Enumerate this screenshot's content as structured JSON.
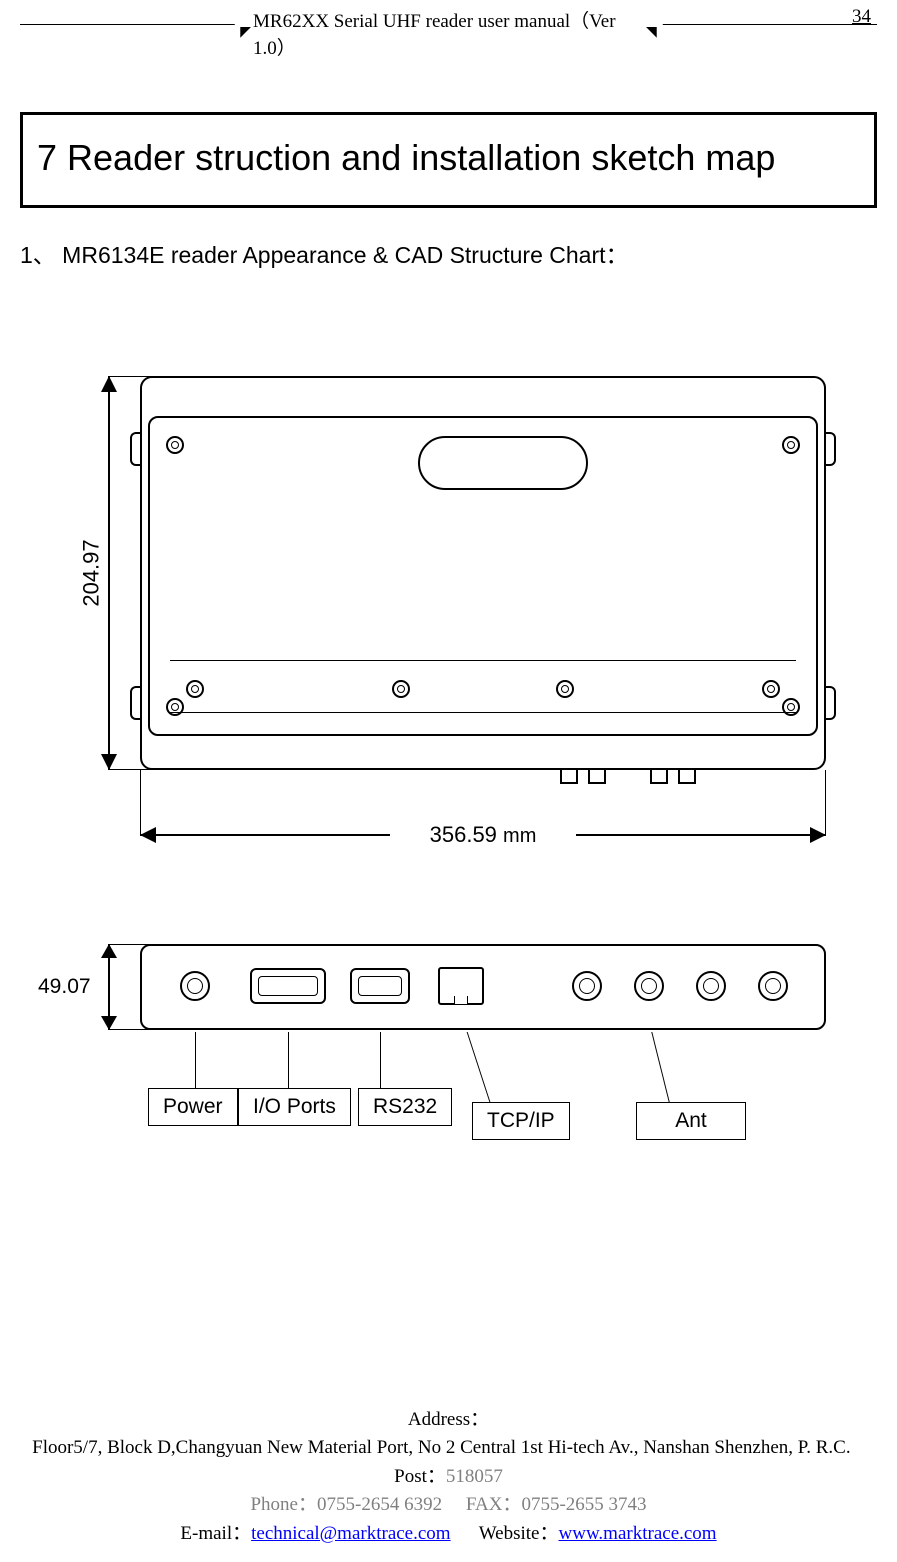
{
  "header": {
    "title": "MR62XX Serial UHF reader user manual（Ver 1.0）",
    "page_number": "34"
  },
  "section": {
    "heading": "7 Reader struction and installation sketch map",
    "subheading": "1、 MR6134E reader Appearance & CAD Structure Chart："
  },
  "diagram": {
    "dimensions": {
      "height_mm": "204.97",
      "width_mm": "356.59",
      "width_unit": "mm",
      "depth_mm": "49.07"
    },
    "ports": {
      "power": "Power",
      "io": "I/O Ports",
      "rs232": "RS232",
      "tcpip": "TCP/IP",
      "ant": "Ant"
    },
    "colors": {
      "stroke": "#000000",
      "background": "#ffffff"
    }
  },
  "footer": {
    "address_label": "Address：",
    "address": "Floor5/7, Block D,Changyuan New  Material Port, No 2 Central 1st Hi-tech Av., Nanshan Shenzhen, P. R.C.",
    "post_label": "Post：",
    "post": "518057",
    "phone_label": "Phone：",
    "phone": "0755-2654 6392",
    "fax_label": "FAX：",
    "fax": "0755-2655 3743",
    "email_label": "E-mail：",
    "email": "technical@marktrace.com",
    "website_label": "Website：",
    "website": "www.marktrace.com"
  }
}
